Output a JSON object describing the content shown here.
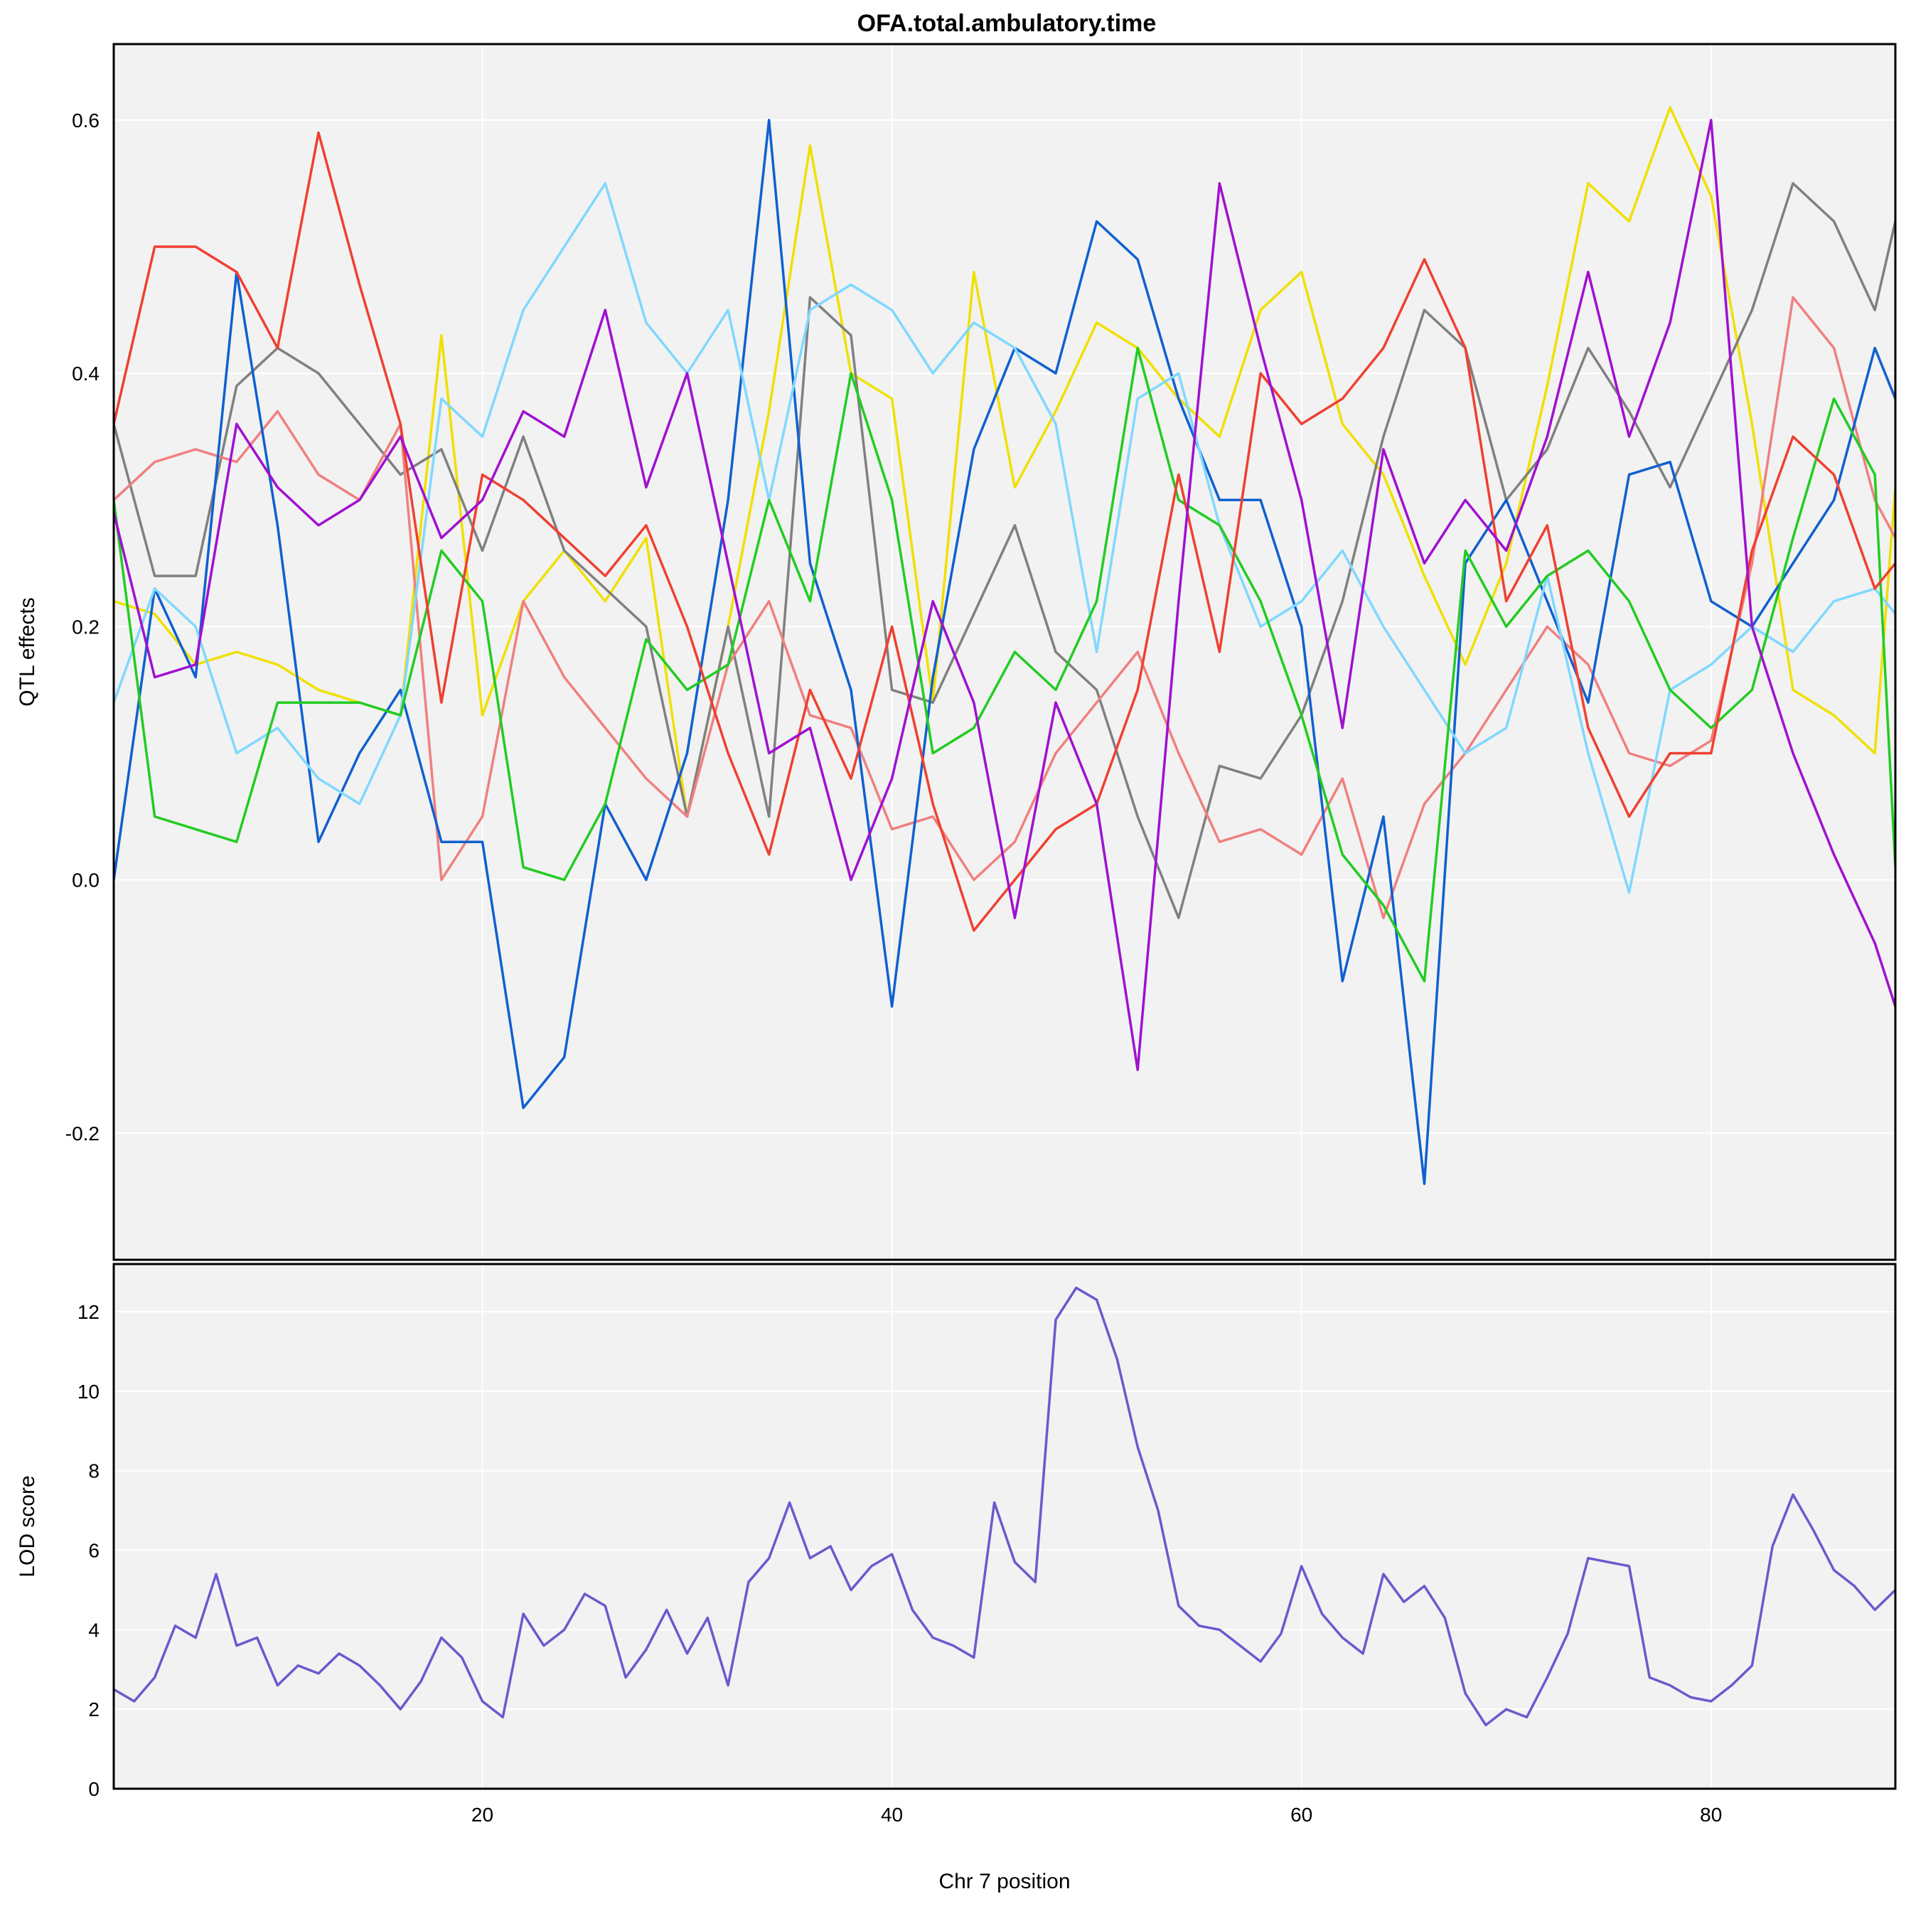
{
  "chart_data": [
    {
      "type": "line",
      "panel": "top",
      "title": "OFA.total.ambulatory.time",
      "ylabel": "QTL effects",
      "xlabel": "",
      "xlim": [
        2,
        89
      ],
      "ylim": [
        -0.3,
        0.66
      ],
      "y_ticks": [
        "-0.2",
        "0.0",
        "0.2",
        "0.4",
        "0.6"
      ],
      "y_tick_values": [
        -0.2,
        0.0,
        0.2,
        0.4,
        0.6
      ],
      "x_tick_values": [
        20,
        40,
        60,
        80
      ],
      "grid": true,
      "x": [
        2,
        4,
        6,
        8,
        10,
        12,
        14,
        16,
        18,
        20,
        22,
        24,
        26,
        28,
        30,
        32,
        34,
        36,
        38,
        40,
        42,
        44,
        46,
        48,
        50,
        52,
        54,
        56,
        58,
        60,
        62,
        64,
        66,
        68,
        70,
        72,
        74,
        76,
        78,
        80,
        82,
        84,
        86,
        88,
        89
      ],
      "series": [
        {
          "color": "#F0E000",
          "values": [
            0.22,
            0.21,
            0.17,
            0.18,
            0.17,
            0.15,
            0.14,
            0.13,
            0.43,
            0.13,
            0.22,
            0.26,
            0.22,
            0.27,
            0.05,
            0.2,
            0.37,
            0.58,
            0.4,
            0.38,
            0.14,
            0.48,
            0.31,
            0.37,
            0.44,
            0.42,
            0.38,
            0.35,
            0.45,
            0.48,
            0.36,
            0.32,
            0.24,
            0.17,
            0.25,
            0.39,
            0.55,
            0.52,
            0.61,
            0.54,
            0.36,
            0.15,
            0.13,
            0.1,
            0.31
          ]
        },
        {
          "color": "#808080",
          "values": [
            0.36,
            0.24,
            0.24,
            0.39,
            0.42,
            0.4,
            0.36,
            0.32,
            0.34,
            0.26,
            0.35,
            0.26,
            0.23,
            0.2,
            0.05,
            0.2,
            0.05,
            0.46,
            0.43,
            0.15,
            0.14,
            0.21,
            0.28,
            0.18,
            0.15,
            0.05,
            -0.03,
            0.09,
            0.08,
            0.13,
            0.22,
            0.35,
            0.45,
            0.42,
            0.3,
            0.34,
            0.42,
            0.37,
            0.31,
            0.38,
            0.45,
            0.55,
            0.52,
            0.45,
            0.52
          ]
        },
        {
          "color": "#F08080",
          "values": [
            0.3,
            0.33,
            0.34,
            0.33,
            0.37,
            0.32,
            0.3,
            0.36,
            0.0,
            0.05,
            0.22,
            0.16,
            0.12,
            0.08,
            0.05,
            0.17,
            0.22,
            0.13,
            0.12,
            0.04,
            0.05,
            0.0,
            0.03,
            0.1,
            0.14,
            0.18,
            0.1,
            0.03,
            0.04,
            0.02,
            0.08,
            -0.03,
            0.06,
            0.1,
            0.15,
            0.2,
            0.17,
            0.1,
            0.09,
            0.11,
            0.25,
            0.46,
            0.42,
            0.3,
            0.27
          ]
        },
        {
          "color": "#1060D0",
          "values": [
            0.0,
            0.23,
            0.16,
            0.48,
            0.28,
            0.03,
            0.1,
            0.15,
            0.03,
            0.03,
            -0.18,
            -0.14,
            0.06,
            0.0,
            0.1,
            0.3,
            0.6,
            0.25,
            0.15,
            -0.1,
            0.16,
            0.34,
            0.42,
            0.4,
            0.52,
            0.49,
            0.38,
            0.3,
            0.3,
            0.2,
            -0.08,
            0.05,
            -0.24,
            0.25,
            0.3,
            0.22,
            0.14,
            0.32,
            0.33,
            0.22,
            0.2,
            0.25,
            0.3,
            0.42,
            0.38
          ]
        },
        {
          "color": "#80D8FF",
          "values": [
            0.14,
            0.23,
            0.2,
            0.1,
            0.12,
            0.08,
            0.06,
            0.13,
            0.38,
            0.35,
            0.45,
            0.5,
            0.55,
            0.44,
            0.4,
            0.45,
            0.3,
            0.45,
            0.47,
            0.45,
            0.4,
            0.44,
            0.42,
            0.36,
            0.18,
            0.38,
            0.4,
            0.28,
            0.2,
            0.22,
            0.26,
            0.2,
            0.15,
            0.1,
            0.12,
            0.24,
            0.1,
            -0.01,
            0.15,
            0.17,
            0.2,
            0.18,
            0.22,
            0.23,
            0.21
          ]
        },
        {
          "color": "#22CC22",
          "values": [
            0.3,
            0.05,
            0.04,
            0.03,
            0.14,
            0.14,
            0.14,
            0.13,
            0.26,
            0.22,
            0.01,
            0.0,
            0.06,
            0.19,
            0.15,
            0.17,
            0.3,
            0.22,
            0.4,
            0.3,
            0.1,
            0.12,
            0.18,
            0.15,
            0.22,
            0.42,
            0.3,
            0.28,
            0.22,
            0.13,
            0.02,
            -0.02,
            -0.08,
            0.26,
            0.2,
            0.24,
            0.26,
            0.22,
            0.15,
            0.12,
            0.15,
            0.27,
            0.38,
            0.32,
            0.01
          ]
        },
        {
          "color": "#F04030",
          "values": [
            0.36,
            0.5,
            0.5,
            0.48,
            0.42,
            0.59,
            0.47,
            0.36,
            0.14,
            0.32,
            0.3,
            0.27,
            0.24,
            0.28,
            0.2,
            0.1,
            0.02,
            0.15,
            0.08,
            0.2,
            0.06,
            -0.04,
            0.0,
            0.04,
            0.06,
            0.15,
            0.32,
            0.18,
            0.4,
            0.36,
            0.38,
            0.42,
            0.49,
            0.42,
            0.22,
            0.28,
            0.12,
            0.05,
            0.1,
            0.1,
            0.26,
            0.35,
            0.32,
            0.23,
            0.25
          ]
        },
        {
          "color": "#A010D0",
          "values": [
            0.29,
            0.16,
            0.17,
            0.36,
            0.31,
            0.28,
            0.3,
            0.35,
            0.27,
            0.3,
            0.37,
            0.35,
            0.45,
            0.31,
            0.4,
            0.25,
            0.1,
            0.12,
            0.0,
            0.08,
            0.22,
            0.14,
            -0.03,
            0.14,
            0.06,
            -0.15,
            0.22,
            0.55,
            0.42,
            0.3,
            0.12,
            0.34,
            0.25,
            0.3,
            0.26,
            0.35,
            0.48,
            0.35,
            0.44,
            0.6,
            0.2,
            0.1,
            0.02,
            -0.05,
            -0.1
          ]
        }
      ]
    },
    {
      "type": "line",
      "panel": "bottom",
      "title": "",
      "ylabel": "LOD score",
      "xlabel": "Chr 7 position",
      "xlim": [
        2,
        89
      ],
      "ylim": [
        0,
        13.2
      ],
      "y_ticks": [
        "0",
        "2",
        "4",
        "6",
        "8",
        "10",
        "12"
      ],
      "y_tick_values": [
        0,
        2,
        4,
        6,
        8,
        10,
        12
      ],
      "x_ticks": [
        "20",
        "40",
        "60",
        "80"
      ],
      "x_tick_values": [
        20,
        40,
        60,
        80
      ],
      "grid": true,
      "x": [
        2,
        3,
        4,
        5,
        6,
        7,
        8,
        9,
        10,
        11,
        12,
        13,
        14,
        15,
        16,
        17,
        18,
        19,
        20,
        21,
        22,
        23,
        24,
        25,
        26,
        27,
        28,
        29,
        30,
        31,
        32,
        33,
        34,
        35,
        36,
        37,
        38,
        39,
        40,
        41,
        42,
        43,
        44,
        45,
        46,
        47,
        48,
        49,
        50,
        51,
        52,
        53,
        54,
        55,
        56,
        57,
        58,
        59,
        60,
        61,
        62,
        63,
        64,
        65,
        66,
        67,
        68,
        69,
        70,
        71,
        72,
        73,
        74,
        75,
        76,
        77,
        78,
        79,
        80,
        81,
        82,
        83,
        84,
        85,
        86,
        87,
        88,
        89
      ],
      "series": [
        {
          "color": "#6A5ACD",
          "values": [
            2.5,
            2.2,
            2.8,
            4.1,
            3.8,
            5.4,
            3.6,
            3.8,
            2.6,
            3.1,
            2.9,
            3.4,
            3.1,
            2.6,
            2.0,
            2.7,
            3.8,
            3.3,
            2.2,
            1.8,
            4.4,
            3.6,
            4.0,
            4.9,
            4.6,
            2.8,
            3.5,
            4.5,
            3.4,
            4.3,
            2.6,
            5.2,
            5.8,
            7.2,
            5.8,
            6.1,
            5.0,
            5.6,
            5.9,
            4.5,
            3.8,
            3.6,
            3.3,
            7.2,
            5.7,
            5.2,
            11.8,
            12.6,
            12.3,
            10.8,
            8.6,
            7.0,
            4.6,
            4.1,
            4.0,
            3.6,
            3.2,
            3.9,
            5.6,
            4.4,
            3.8,
            3.4,
            5.4,
            4.7,
            5.1,
            4.3,
            2.4,
            1.6,
            2.0,
            1.8,
            2.8,
            3.9,
            5.8,
            5.7,
            5.6,
            2.8,
            2.6,
            2.3,
            2.2,
            2.6,
            3.1,
            6.1,
            7.4,
            6.5,
            5.5,
            5.1,
            4.5,
            5.0
          ]
        }
      ]
    }
  ]
}
